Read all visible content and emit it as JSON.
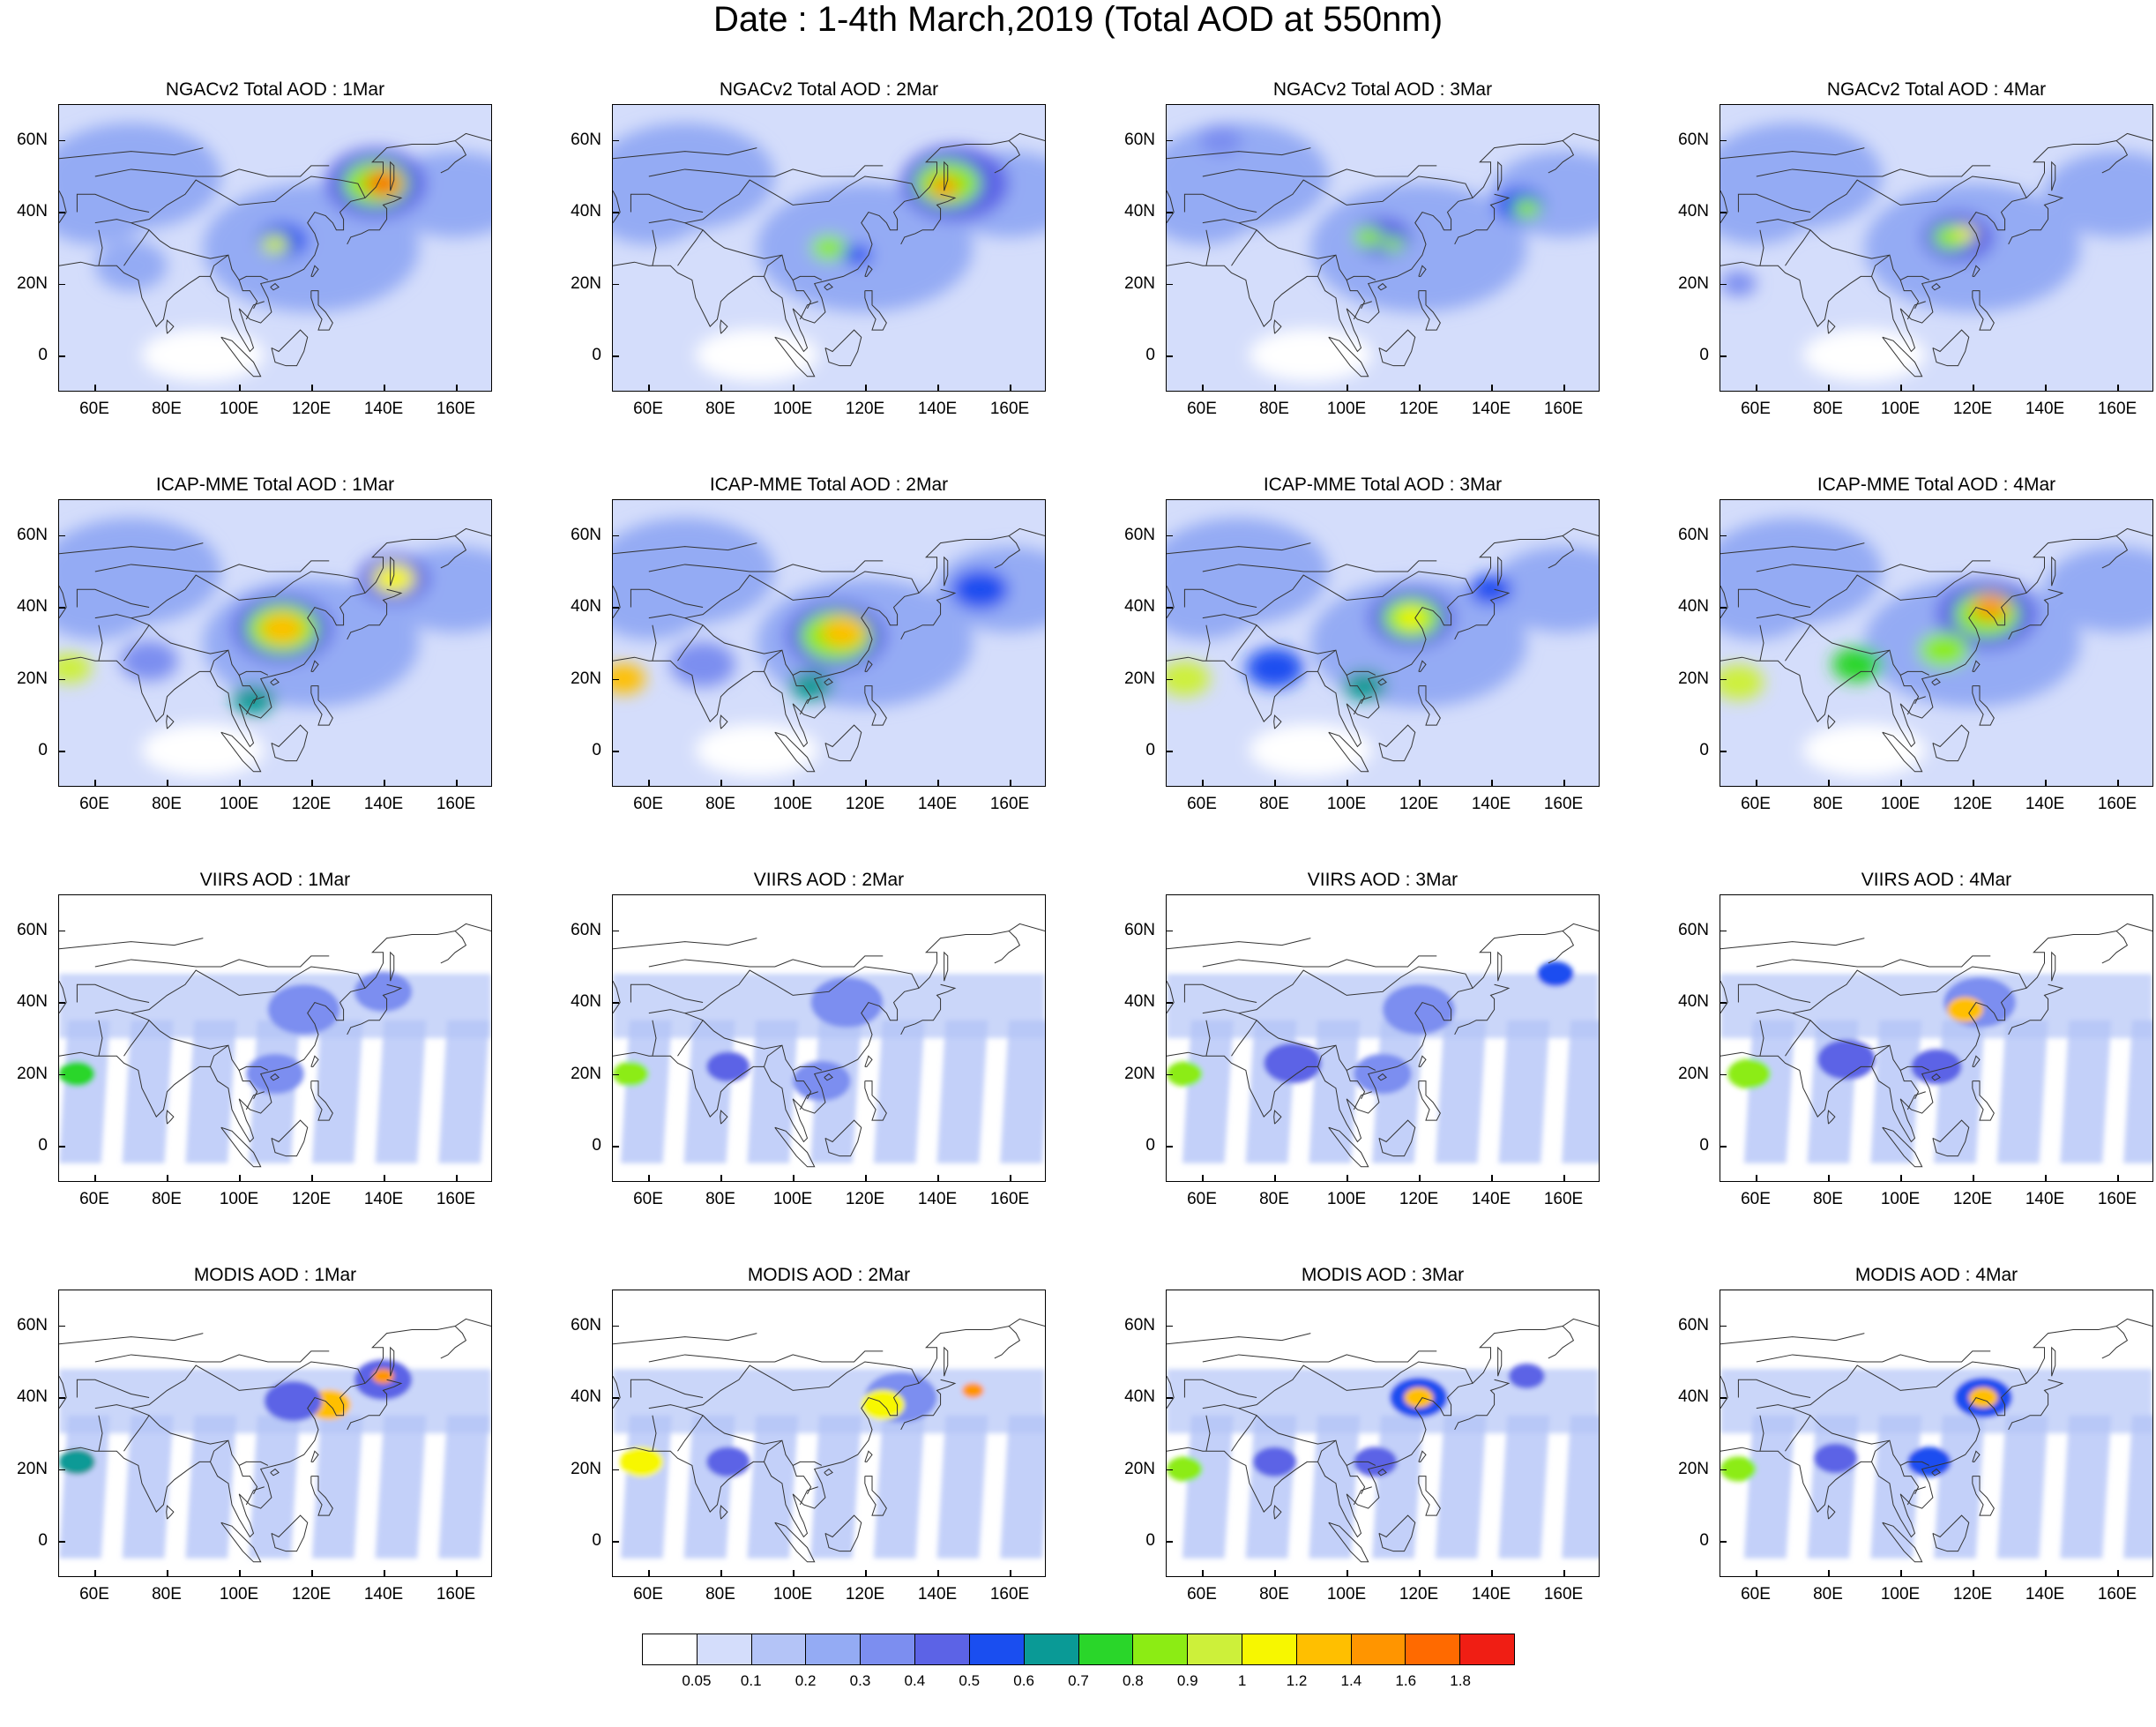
{
  "title": "Date : 1-4th March,2019 (Total AOD at 550nm)",
  "grid": {
    "rows": [
      "NGACv2 Total AOD",
      "ICAP-MME Total AOD",
      "VIIRS AOD",
      "MODIS AOD"
    ],
    "days": [
      "1Mar",
      "2Mar",
      "3Mar",
      "4Mar"
    ]
  },
  "panels": [
    [
      "NGACv2 Total AOD : 1Mar",
      "NGACv2 Total AOD : 2Mar",
      "NGACv2 Total AOD : 3Mar",
      "NGACv2 Total AOD : 4Mar"
    ],
    [
      "ICAP-MME Total AOD : 1Mar",
      "ICAP-MME Total AOD : 2Mar",
      "ICAP-MME Total AOD : 3Mar",
      "ICAP-MME Total AOD : 4Mar"
    ],
    [
      "VIIRS AOD : 1Mar",
      "VIIRS AOD : 2Mar",
      "VIIRS AOD : 3Mar",
      "VIIRS AOD : 4Mar"
    ],
    [
      "MODIS AOD : 1Mar",
      "MODIS AOD : 2Mar",
      "MODIS AOD : 3Mar",
      "MODIS AOD : 4Mar"
    ]
  ],
  "axes": {
    "lat_ticks": [
      "60N",
      "40N",
      "20N",
      "0"
    ],
    "lat_values": [
      60,
      40,
      20,
      0
    ],
    "lon_ticks": [
      "60E",
      "80E",
      "100E",
      "120E",
      "140E",
      "160E"
    ],
    "lon_values": [
      60,
      80,
      100,
      120,
      140,
      160
    ],
    "lon_range": [
      50,
      170
    ],
    "lat_range": [
      -10,
      70
    ]
  },
  "colorbar": {
    "labels": [
      "0.05",
      "0.1",
      "0.2",
      "0.3",
      "0.4",
      "0.5",
      "0.6",
      "0.7",
      "0.8",
      "0.9",
      "1",
      "1.2",
      "1.4",
      "1.6",
      "1.8"
    ],
    "colors": [
      "#ffffff",
      "#d4ddfb",
      "#b4c4f7",
      "#94abf4",
      "#7c8ef0",
      "#5c63e6",
      "#1a4ef0",
      "#0a9a96",
      "#2ad62a",
      "#8cec14",
      "#cdf03a",
      "#f7f700",
      "#ffbf00",
      "#ff9500",
      "#ff6a00",
      "#f01e14"
    ]
  }
}
